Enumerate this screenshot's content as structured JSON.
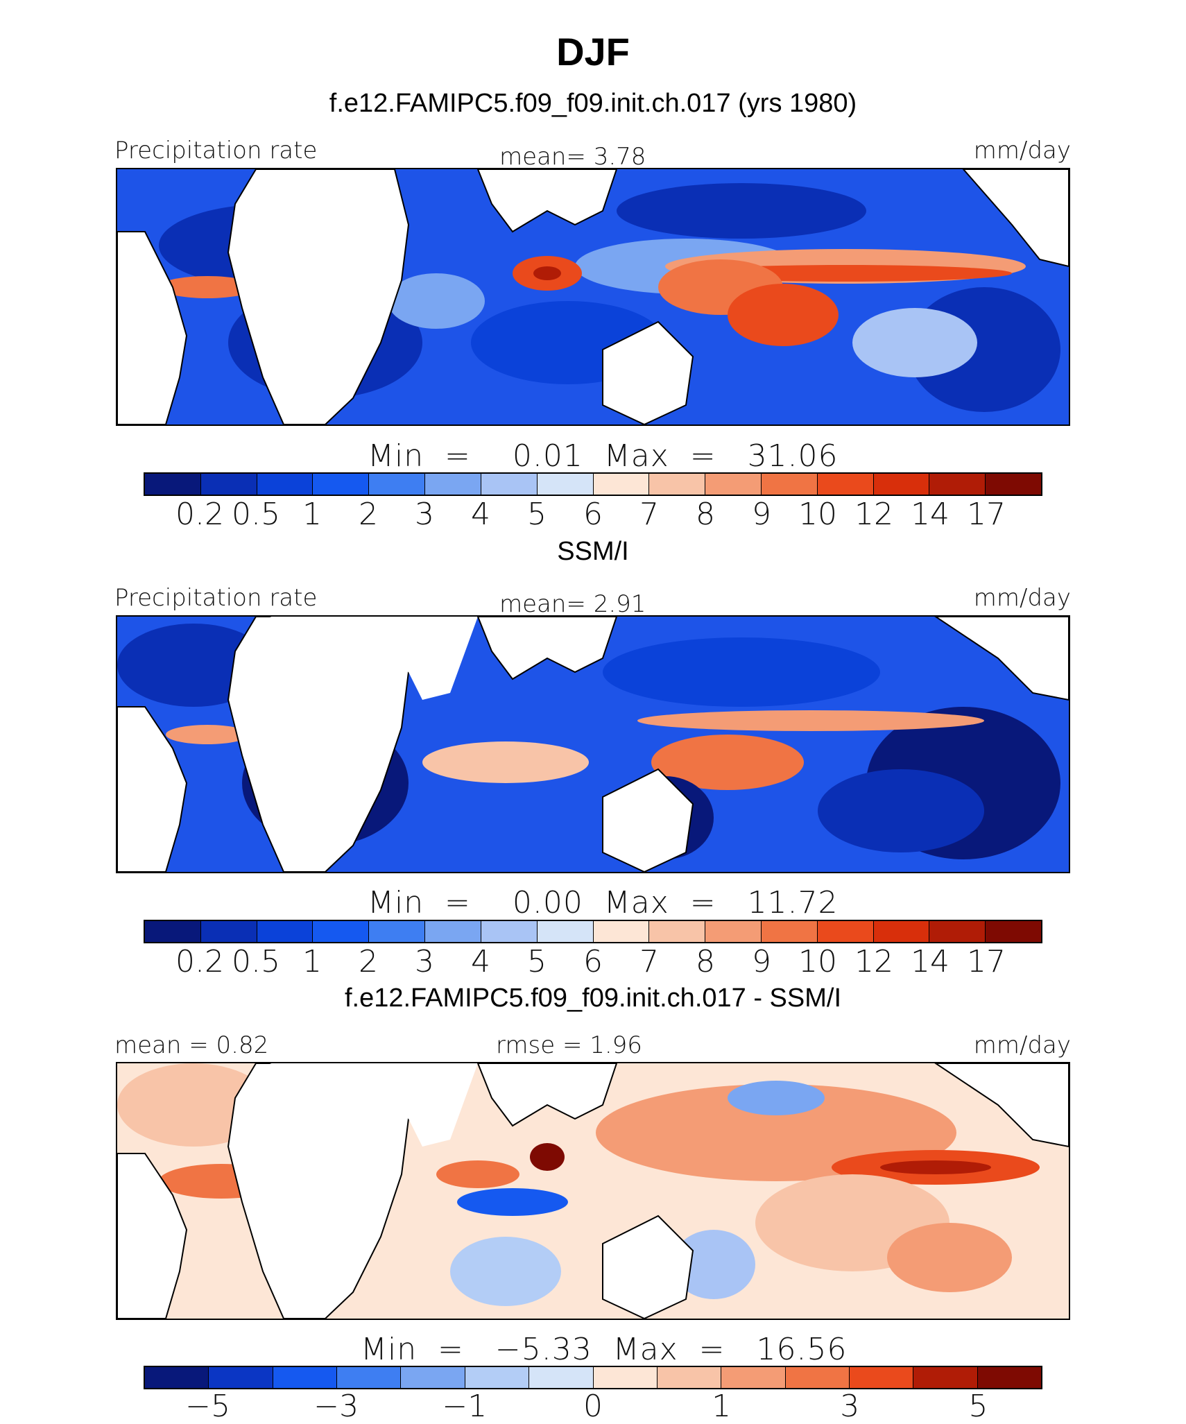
{
  "figure": {
    "season_title": "DJF"
  },
  "panels": [
    {
      "title": "f.e12.FAMIPC5.f09_f09.init.ch.017 (yrs 1980)",
      "left_label": "Precipitation rate",
      "center_label": "mean=   3.78",
      "right_label": "mm/day",
      "minmax": "Min  =    0.01  Max  =   31.06",
      "field": "model"
    },
    {
      "title": "SSM/I",
      "left_label": "Precipitation rate",
      "center_label": "mean=   2.91",
      "right_label": "mm/day",
      "minmax": "Min  =    0.00  Max  =   11.72",
      "field": "obs"
    },
    {
      "title": "f.e12.FAMIPC5.f09_f09.init.ch.017 - SSM/I",
      "left_label": "mean =   0.82",
      "center_label": "rmse =   1.96",
      "right_label": "mm/day",
      "minmax": "Min  =   −5.33  Max  =   16.56",
      "field": "diff"
    }
  ],
  "colorbars": {
    "precip": {
      "colors": [
        "#08187a",
        "#0a2fb5",
        "#0b42d9",
        "#1559f0",
        "#3e7ef2",
        "#7aa6f2",
        "#a9c4f5",
        "#d5e4f8",
        "#fde6d6",
        "#f8c4a8",
        "#f49c75",
        "#f07444",
        "#ea4a1c",
        "#d82f0b",
        "#b01c06",
        "#7e0a02"
      ],
      "tick_labels": [
        "0.2",
        "0.5",
        "1",
        "2",
        "3",
        "4",
        "5",
        "6",
        "7",
        "8",
        "9",
        "10",
        "12",
        "14",
        "17"
      ]
    },
    "diff": {
      "colors": [
        "#08187a",
        "#0b36c4",
        "#1559f0",
        "#3e7ef2",
        "#7aa6f2",
        "#b3cdf6",
        "#d5e4f8",
        "#fde6d6",
        "#f8c4a8",
        "#f49c75",
        "#f07444",
        "#ea4a1c",
        "#b01c06",
        "#7e0a02"
      ],
      "tick_labels": [
        "−5",
        "−3",
        "−1",
        "0",
        "1",
        "3",
        "5"
      ]
    }
  },
  "chart_data": {
    "type": "heatmap",
    "title": "DJF",
    "units": "mm/day",
    "panels": [
      {
        "name": "f.e12.FAMIPC5.f09_f09.init.ch.017 (yrs 1980)",
        "variable": "Precipitation rate",
        "mean": 3.78,
        "min": 0.01,
        "max": 31.06,
        "levels": [
          0.2,
          0.5,
          1,
          2,
          3,
          4,
          5,
          6,
          7,
          8,
          9,
          10,
          12,
          14,
          17
        ]
      },
      {
        "name": "SSM/I",
        "variable": "Precipitation rate",
        "mean": 2.91,
        "min": 0.0,
        "max": 11.72,
        "levels": [
          0.2,
          0.5,
          1,
          2,
          3,
          4,
          5,
          6,
          7,
          8,
          9,
          10,
          12,
          14,
          17
        ]
      },
      {
        "name": "f.e12.FAMIPC5.f09_f09.init.ch.017 - SSM/I",
        "mean": 0.82,
        "rmse": 1.96,
        "min": -5.33,
        "max": 16.56,
        "levels": [
          -5,
          -4,
          -3,
          -2,
          -1,
          -0.5,
          0,
          0.5,
          1,
          2,
          3,
          4,
          5
        ]
      }
    ]
  }
}
